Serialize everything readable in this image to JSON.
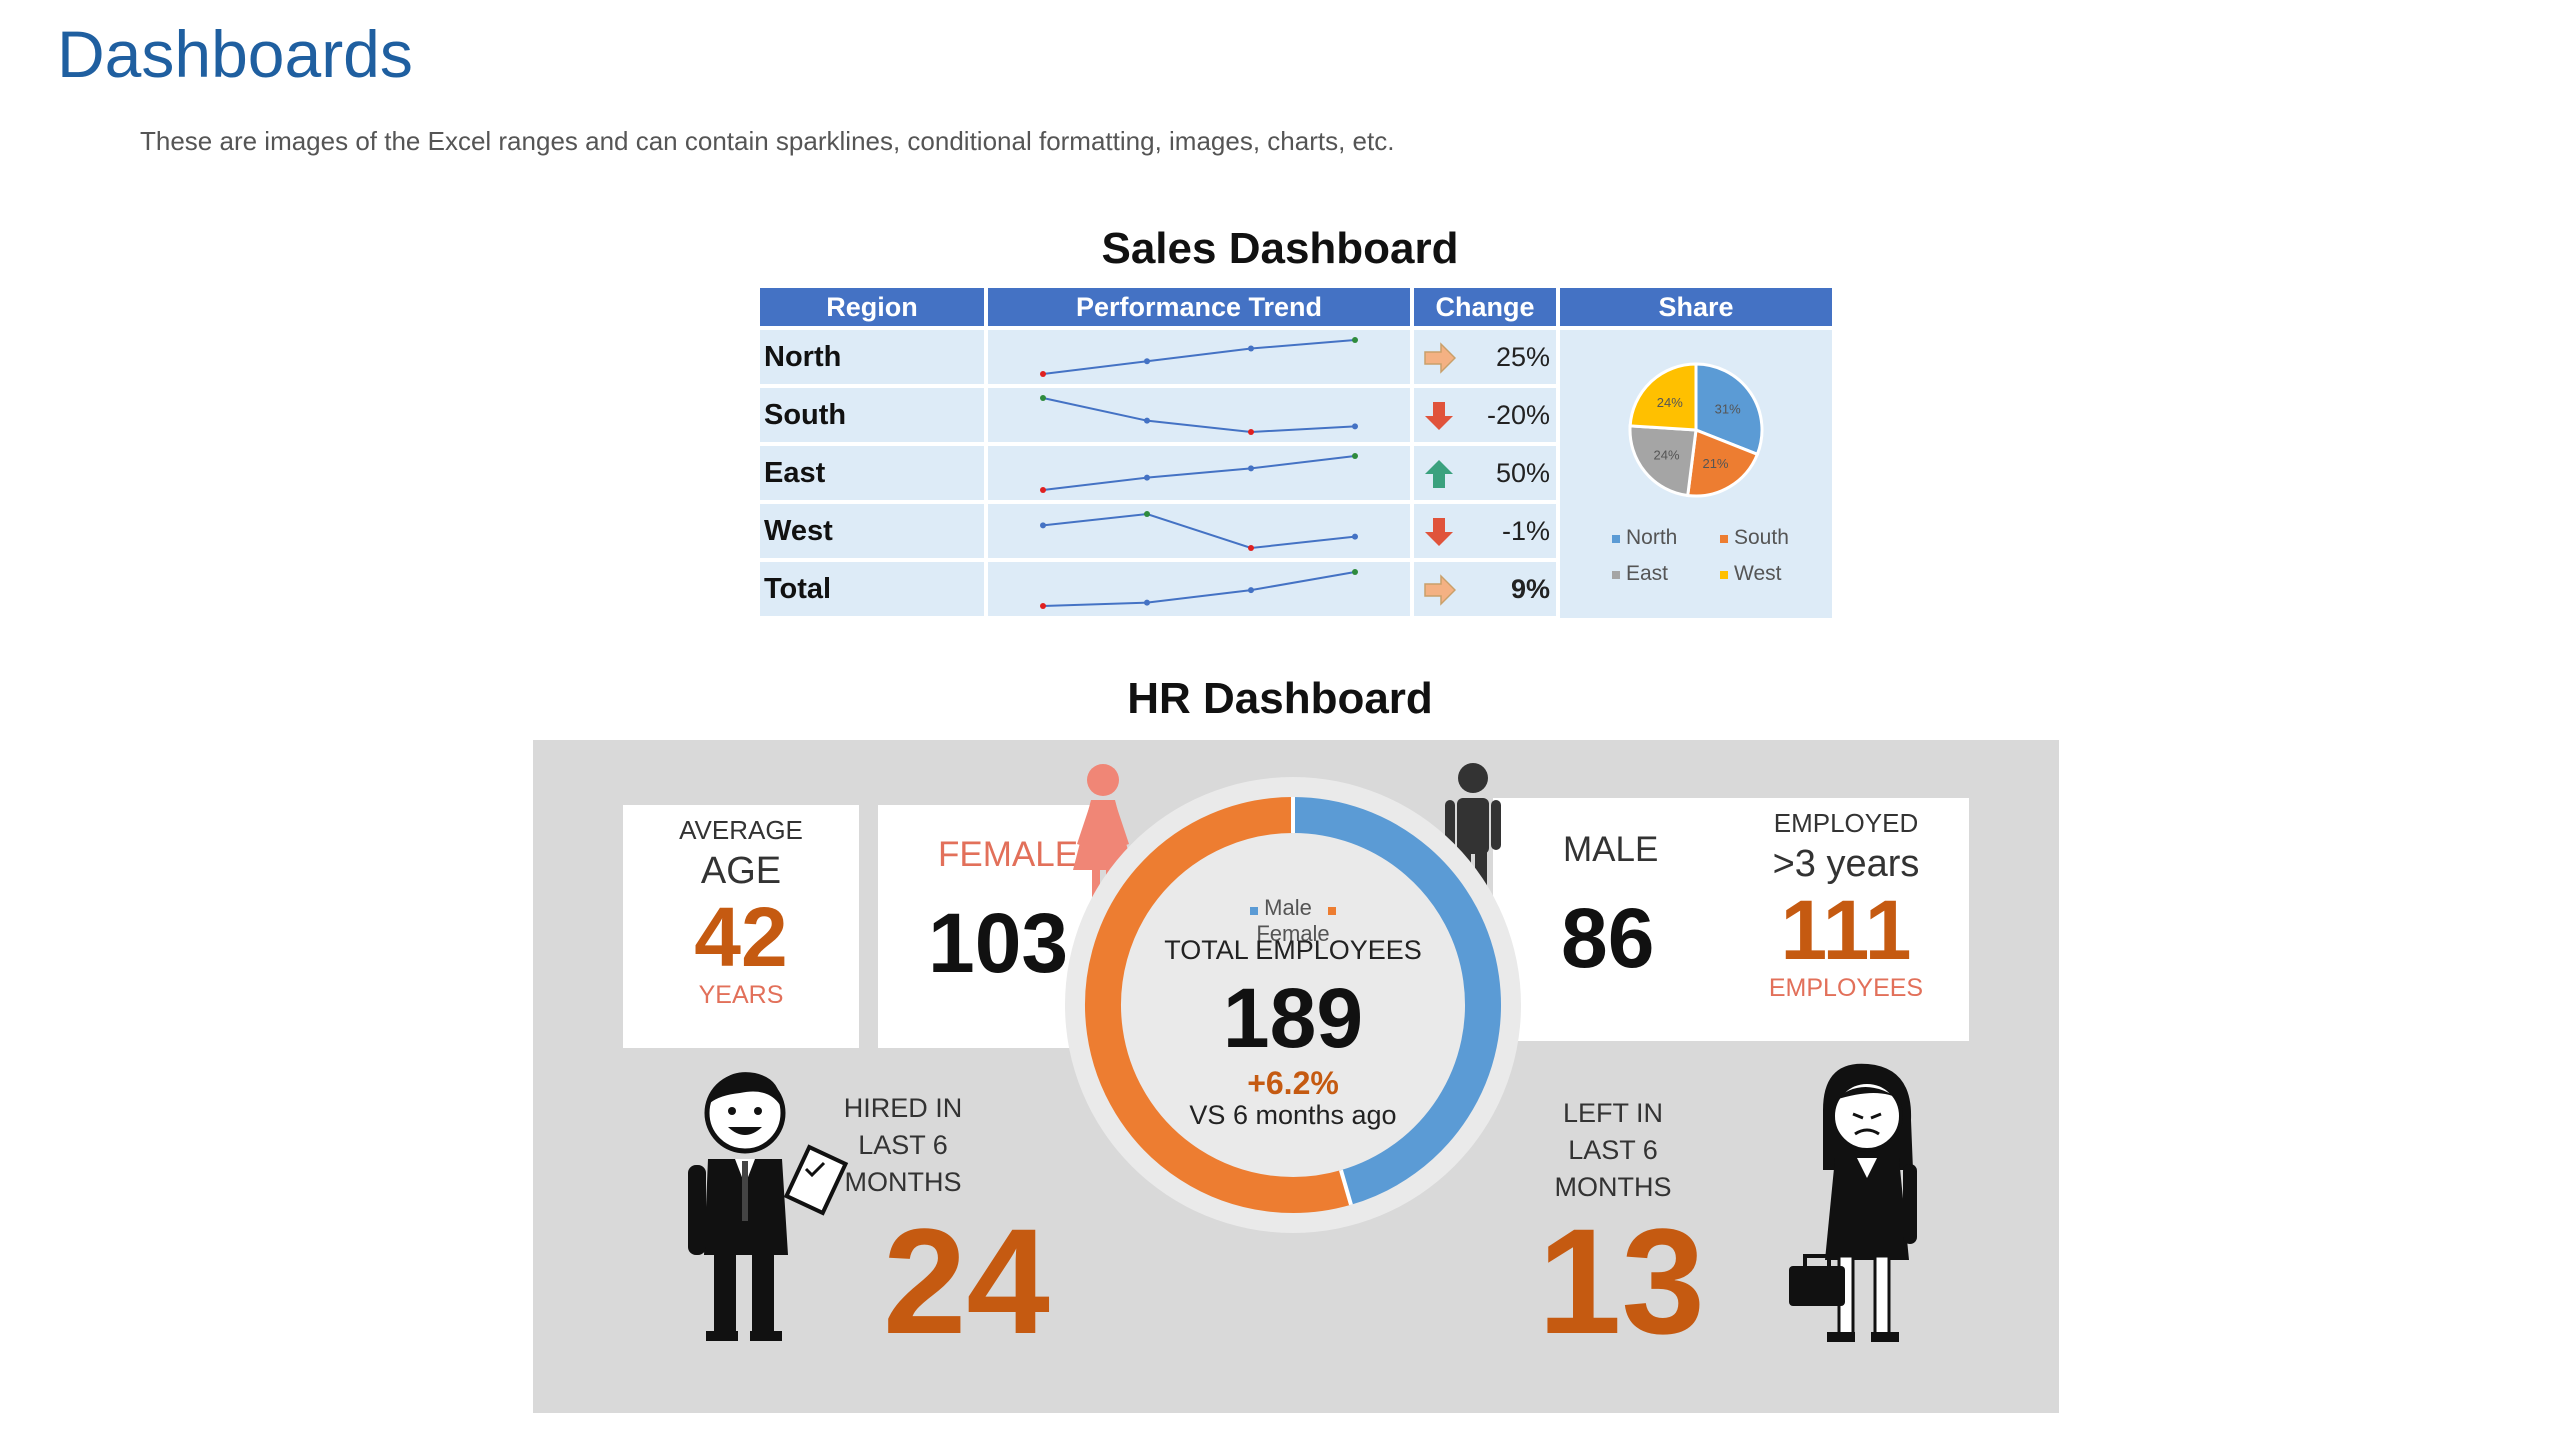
{
  "page": {
    "title": "Dashboards",
    "subtitle": "These are images of the Excel ranges and can contain sparklines, conditional formatting, images, charts, etc."
  },
  "sales": {
    "title": "Sales Dashboard",
    "headers": [
      "Region",
      "Performance Trend",
      "Change",
      "Share"
    ],
    "rows": [
      {
        "region": "North",
        "change": "25%",
        "arrow": "right-arrow-icon"
      },
      {
        "region": "South",
        "change": "-20%",
        "arrow": "down-arrow-icon"
      },
      {
        "region": "East",
        "change": "50%",
        "arrow": "up-arrow-icon"
      },
      {
        "region": "West",
        "change": "-1%",
        "arrow": "down-arrow-icon"
      },
      {
        "region": "Total",
        "change": "9%",
        "arrow": "right-arrow-icon"
      }
    ],
    "colors": {
      "header": "#4472c4",
      "cell": "#ddebf7",
      "north": "#5b9bd5",
      "south": "#ed7d31",
      "east": "#a5a5a5",
      "west": "#ffc000"
    }
  },
  "chart_data": [
    {
      "type": "line",
      "title": "Performance Trend sparklines",
      "x": [
        1,
        2,
        3,
        4
      ],
      "series": [
        {
          "name": "North",
          "values": [
            1.0,
            1.6,
            2.2,
            2.6
          ]
        },
        {
          "name": "South",
          "values": [
            3.0,
            2.2,
            1.8,
            2.0
          ]
        },
        {
          "name": "East",
          "values": [
            1.0,
            1.8,
            2.4,
            3.2
          ]
        },
        {
          "name": "West",
          "values": [
            2.1,
            2.2,
            1.9,
            2.0
          ]
        },
        {
          "name": "Total",
          "values": [
            1.0,
            1.3,
            2.4,
            4.0
          ]
        }
      ]
    },
    {
      "type": "pie",
      "title": "Share",
      "labels": [
        "North",
        "South",
        "East",
        "West"
      ],
      "values": [
        31,
        21,
        24,
        24
      ],
      "data_labels": [
        "31%",
        "21%",
        "24%",
        "24%"
      ],
      "legend": "bottom"
    },
    {
      "type": "pie",
      "title": "TOTAL EMPLOYEES",
      "labels": [
        "Male",
        "Female"
      ],
      "values": [
        86,
        103
      ],
      "legend": "top"
    }
  ],
  "hr": {
    "title": "HR Dashboard",
    "avg_age": {
      "label1": "AVERAGE",
      "label2": "AGE",
      "value": "42",
      "unit": "YEARS"
    },
    "female": {
      "label": "FEMALE",
      "value": "103"
    },
    "male": {
      "label": "MALE",
      "value": "86"
    },
    "employed": {
      "label1": "EMPLOYED",
      "label2": ">3 years",
      "value": "111",
      "unit": "EMPLOYEES"
    },
    "total": {
      "legend_male": "Male",
      "legend_female": "Female",
      "label": "TOTAL EMPLOYEES",
      "value": "189",
      "change": "+6.2%",
      "compare": "VS 6 months ago"
    },
    "hired": {
      "label1": "HIRED IN",
      "label2": "LAST 6 MONTHS",
      "value": "24"
    },
    "left": {
      "label1": "LEFT IN",
      "label2": "LAST 6 MONTHS",
      "value": "13"
    },
    "colors": {
      "male": "#5b9bd5",
      "female": "#ed7d31",
      "accent": "#c55a11"
    }
  }
}
